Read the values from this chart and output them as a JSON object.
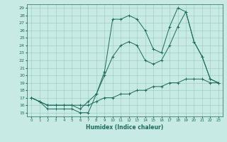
{
  "xlabel": "Humidex (Indice chaleur)",
  "bg_color": "#c8eae4",
  "grid_color": "#a0cfc7",
  "line_color": "#1a6b5a",
  "xlim": [
    -0.5,
    23.5
  ],
  "ylim": [
    14.5,
    29.5
  ],
  "xticks": [
    0,
    1,
    2,
    3,
    4,
    5,
    6,
    7,
    8,
    9,
    10,
    11,
    12,
    13,
    14,
    15,
    16,
    17,
    18,
    19,
    20,
    21,
    22,
    23
  ],
  "yticks": [
    15,
    16,
    17,
    18,
    19,
    20,
    21,
    22,
    23,
    24,
    25,
    26,
    27,
    28,
    29
  ],
  "series1_x": [
    0,
    1,
    2,
    3,
    4,
    5,
    6,
    7,
    8,
    9,
    10,
    11,
    12,
    13,
    14,
    15,
    16,
    17,
    18,
    19,
    20,
    21,
    22,
    23
  ],
  "series1_y": [
    17.0,
    16.5,
    16.0,
    16.0,
    16.0,
    16.0,
    16.0,
    16.0,
    16.5,
    17.0,
    17.0,
    17.5,
    17.5,
    18.0,
    18.0,
    18.5,
    18.5,
    19.0,
    19.0,
    19.5,
    19.5,
    19.5,
    19.0,
    19.0
  ],
  "series2_x": [
    0,
    1,
    2,
    3,
    4,
    5,
    6,
    7,
    8,
    9,
    10,
    11,
    12,
    13,
    14,
    15,
    16,
    17,
    18,
    19,
    20,
    21,
    22,
    23
  ],
  "series2_y": [
    17.0,
    16.5,
    16.0,
    16.0,
    16.0,
    16.0,
    15.5,
    16.5,
    17.5,
    20.0,
    22.5,
    24.0,
    24.5,
    24.0,
    22.0,
    21.5,
    22.0,
    24.0,
    26.5,
    28.5,
    24.5,
    22.5,
    19.5,
    19.0
  ],
  "series3_x": [
    0,
    1,
    2,
    3,
    4,
    5,
    6,
    7,
    8,
    9,
    10,
    11,
    12,
    13,
    14,
    15,
    16,
    17,
    18,
    19,
    20,
    21,
    22,
    23
  ],
  "series3_y": [
    17.0,
    16.5,
    15.5,
    15.5,
    15.5,
    15.5,
    15.0,
    15.0,
    17.5,
    20.5,
    27.5,
    27.5,
    28.0,
    27.5,
    26.0,
    23.5,
    23.0,
    26.5,
    29.0,
    28.5,
    24.5,
    22.5,
    19.5,
    19.0
  ]
}
